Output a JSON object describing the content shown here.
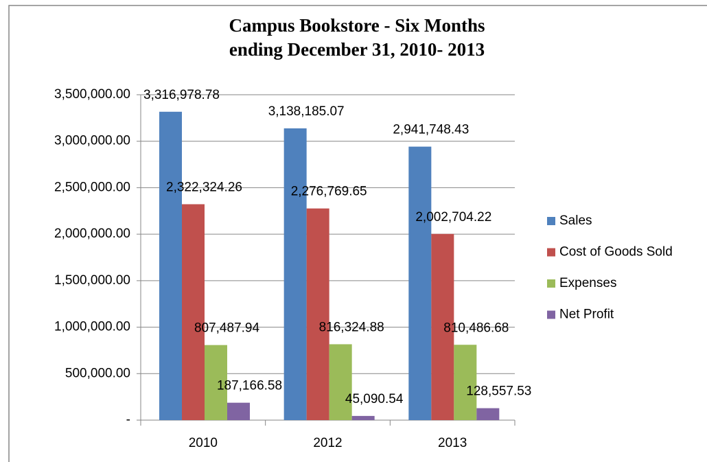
{
  "chart_data": {
    "type": "bar",
    "title": [
      "Campus Bookstore - Six Months",
      "ending December 31, 2010- 2013"
    ],
    "categories": [
      "2010",
      "2012",
      "2013"
    ],
    "series": [
      {
        "name": "Sales",
        "color": "#4f81bd",
        "values": [
          3316978.78,
          3138185.07,
          2941748.43
        ],
        "value_labels": [
          "3,316,978.78",
          "3,138,185.07",
          "2,941,748.43"
        ]
      },
      {
        "name": "Cost of Goods Sold",
        "color": "#c0504d",
        "values": [
          2322324.26,
          2276769.65,
          2002704.22
        ],
        "value_labels": [
          "2,322,324.26",
          "2,276,769.65",
          "2,002,704.22"
        ]
      },
      {
        "name": "Expenses",
        "color": "#9bbb59",
        "values": [
          807487.94,
          816324.88,
          810486.68
        ],
        "value_labels": [
          "807,487.94",
          "816,324.88",
          "810,486.68"
        ]
      },
      {
        "name": "Net Profit",
        "color": "#8064a2",
        "values": [
          187166.58,
          45090.54,
          128557.53
        ],
        "value_labels": [
          "187,166.58",
          "45,090.54",
          "128,557.53"
        ]
      }
    ],
    "ylim": [
      0,
      3500000
    ],
    "yticks": [
      {
        "value": 0,
        "label": "-"
      },
      {
        "value": 500000,
        "label": "500,000.00"
      },
      {
        "value": 1000000,
        "label": "1,000,000.00"
      },
      {
        "value": 1500000,
        "label": "1,500,000.00"
      },
      {
        "value": 2000000,
        "label": "2,000,000.00"
      },
      {
        "value": 2500000,
        "label": "2,500,000.00"
      },
      {
        "value": 3000000,
        "label": "3,000,000.00"
      },
      {
        "value": 3500000,
        "label": "3,500,000.00"
      }
    ],
    "grid": true,
    "legend": "right"
  }
}
